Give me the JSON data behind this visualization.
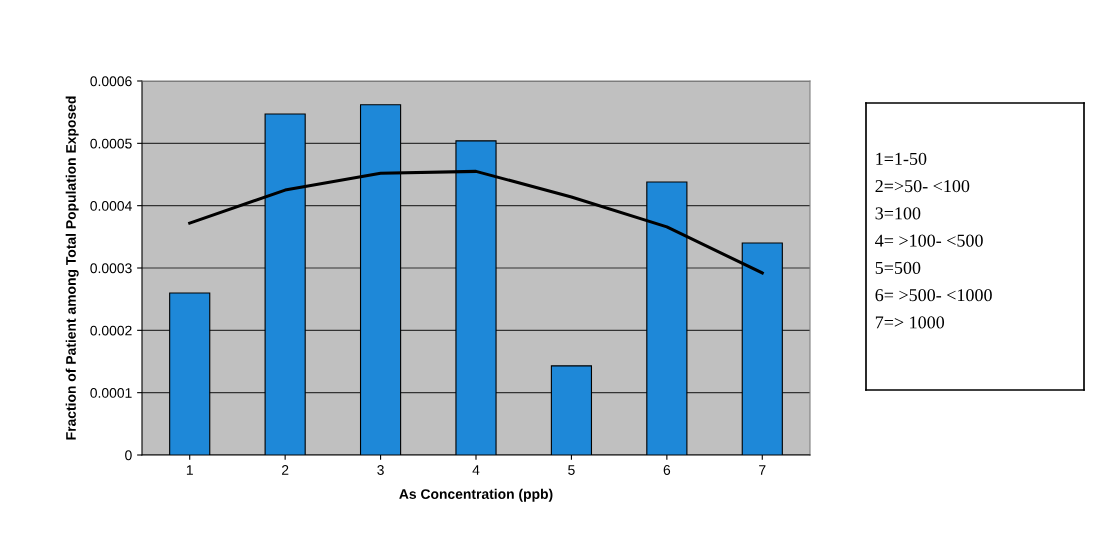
{
  "chart_data": {
    "type": "bar",
    "xlabel": "As Concentration (ppb)",
    "ylabel": "Fraction of Patient among Total Population Exposed",
    "categories": [
      "1",
      "2",
      "3",
      "4",
      "5",
      "6",
      "7"
    ],
    "series": [
      {
        "color": "#1e88d8",
        "values": [
          0.00026,
          0.000547,
          0.000562,
          0.000504,
          0.000143,
          0.000438,
          0.00034
        ]
      },
      {
        "type": "line",
        "color": "#000000",
        "x": [
          "1",
          "2",
          "3",
          "4",
          "5",
          "6",
          "7"
        ],
        "values": [
          0.000372,
          0.000425,
          0.000452,
          0.000455,
          0.000414,
          0.000366,
          0.000292
        ]
      }
    ],
    "ylim": [
      0,
      0.0006
    ],
    "yticks": [
      0,
      0.0001,
      0.0002,
      0.0003,
      0.0004,
      0.0005,
      0.0006
    ],
    "grid": "y",
    "legend": false,
    "annotations": [
      "1=1-50",
      "2=>50- <100",
      "3=100",
      "4= >100- <500",
      "5=500",
      "6= >500- <1000",
      "7=> 1000"
    ]
  }
}
